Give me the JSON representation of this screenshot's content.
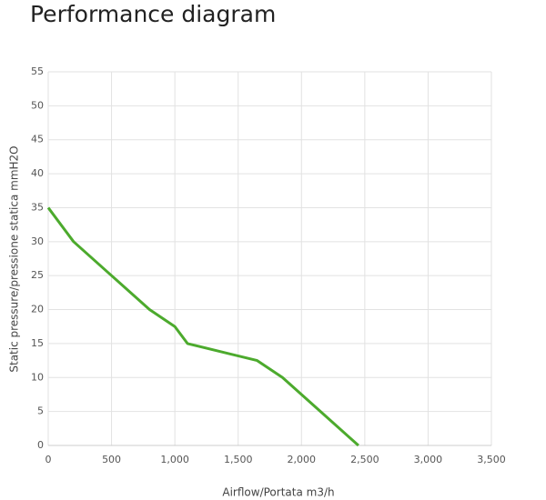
{
  "chart_data": {
    "type": "line",
    "title": "Performance diagram",
    "x_label": "Airflow/Portata m3/h",
    "y_label": "Static pressure/pressione statica mmH2O",
    "x": [
      0,
      200,
      500,
      800,
      1000,
      1100,
      1650,
      1850,
      2150,
      2450
    ],
    "series": [
      {
        "name": "Performance",
        "color": "#4caa2d",
        "values": [
          35,
          30,
          25,
          20,
          17.5,
          15,
          12.5,
          10,
          5,
          0
        ]
      }
    ],
    "xlim": [
      0,
      3500
    ],
    "xticks": [
      0,
      500,
      {
        "value": 1000,
        "label": "1,000"
      },
      {
        "value": 1500,
        "label": "1,500"
      },
      {
        "value": 2000,
        "label": "2,000"
      },
      {
        "value": 2500,
        "label": "2,500"
      },
      {
        "value": 3000,
        "label": "3,000"
      },
      {
        "value": 3500,
        "label": "3,500"
      }
    ],
    "ylim": [
      0,
      55
    ],
    "yticks": [
      0,
      5,
      10,
      15,
      20,
      25,
      30,
      35,
      40,
      45,
      50,
      55
    ],
    "grid": true
  }
}
